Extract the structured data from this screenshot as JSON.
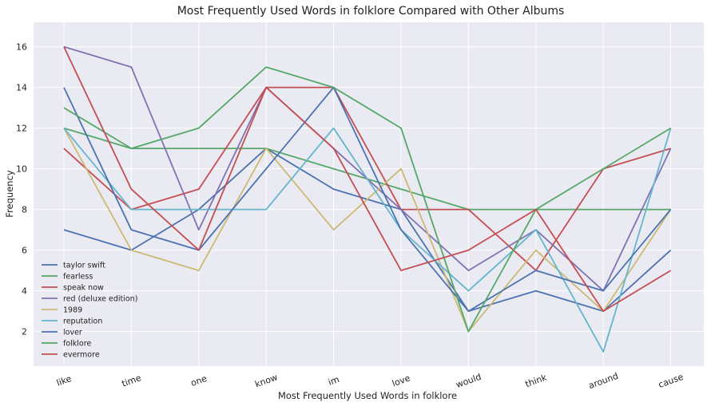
{
  "chart_data": {
    "type": "line",
    "title": "Most Frequently Used Words in folklore Compared with Other Albums",
    "xlabel": "Most Frequently Used Words in folklore",
    "ylabel": "Frequency",
    "categories": [
      "like",
      "time",
      "one",
      "know",
      "im",
      "love",
      "would",
      "think",
      "around",
      "cause"
    ],
    "yticks": [
      2,
      4,
      6,
      8,
      10,
      12,
      14,
      16
    ],
    "ylim": [
      0.3,
      17.2
    ],
    "grid": true,
    "legend_position": "lower-left",
    "series": [
      {
        "name": "taylor swift",
        "color": "#4c72b0",
        "values": [
          7,
          6,
          8,
          11,
          9,
          8,
          3,
          4,
          3,
          6
        ]
      },
      {
        "name": "fearless",
        "color": "#55a868",
        "values": [
          12,
          11,
          11,
          11,
          10,
          9,
          8,
          8,
          8,
          8
        ]
      },
      {
        "name": "speak now",
        "color": "#c44e52",
        "values": [
          11,
          8,
          9,
          14,
          14,
          8,
          8,
          5,
          10,
          11
        ]
      },
      {
        "name": "red (deluxe edition)",
        "color": "#8172b2",
        "values": [
          16,
          15,
          7,
          14,
          11,
          8,
          5,
          7,
          4,
          11
        ]
      },
      {
        "name": "1989",
        "color": "#ccb974",
        "values": [
          12,
          6,
          5,
          11,
          7,
          10,
          2,
          6,
          3,
          8
        ]
      },
      {
        "name": "reputation",
        "color": "#64b5cd",
        "values": [
          12,
          8,
          8,
          8,
          12,
          7,
          4,
          7,
          1,
          12
        ]
      },
      {
        "name": "lover",
        "color": "#4c72b0",
        "values": [
          14,
          7,
          6,
          10,
          14,
          7,
          3,
          5,
          4,
          8
        ]
      },
      {
        "name": "folklore",
        "color": "#55a868",
        "values": [
          13,
          11,
          12,
          15,
          14,
          12,
          2,
          8,
          10,
          12
        ]
      },
      {
        "name": "evermore",
        "color": "#c44e52",
        "values": [
          16,
          9,
          6,
          14,
          11,
          5,
          6,
          8,
          3,
          5
        ]
      }
    ]
  }
}
